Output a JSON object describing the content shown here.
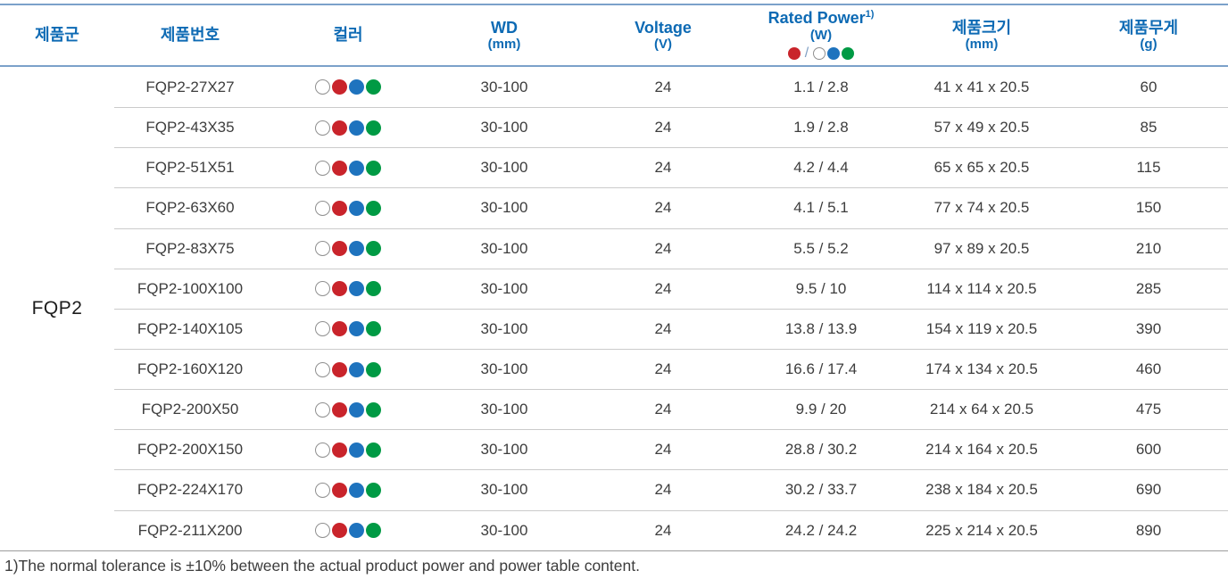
{
  "table": {
    "headers": {
      "family": "제품군",
      "part_no": "제품번호",
      "color": "컬러",
      "wd": "WD",
      "wd_unit": "(mm)",
      "voltage": "Voltage",
      "voltage_unit": "(V)",
      "rated_power": "Rated Power",
      "rated_power_sup": "1)",
      "rated_power_unit": "(W)",
      "rated_power_slash": "/"
    },
    "headers2": {
      "size": "제품크기",
      "size_unit": "(mm)",
      "weight": "제품무게",
      "weight_unit": "(g)"
    },
    "family_value": "FQP2",
    "color_dots_order": [
      "white",
      "red",
      "blue",
      "green"
    ],
    "header_power_dots": {
      "left": "red",
      "right": [
        "white",
        "blue",
        "green"
      ]
    },
    "rows": [
      {
        "part_no": "FQP2-27X27",
        "wd": "30-100",
        "voltage": "24",
        "rated_power": "1.1 / 2.8",
        "size": "41 x 41 x 20.5",
        "weight": "60"
      },
      {
        "part_no": "FQP2-43X35",
        "wd": "30-100",
        "voltage": "24",
        "rated_power": "1.9 / 2.8",
        "size": "57 x 49 x 20.5",
        "weight": "85"
      },
      {
        "part_no": "FQP2-51X51",
        "wd": "30-100",
        "voltage": "24",
        "rated_power": "4.2 / 4.4",
        "size": "65 x 65 x 20.5",
        "weight": "115"
      },
      {
        "part_no": "FQP2-63X60",
        "wd": "30-100",
        "voltage": "24",
        "rated_power": "4.1 / 5.1",
        "size": "77 x 74 x 20.5",
        "weight": "150"
      },
      {
        "part_no": "FQP2-83X75",
        "wd": "30-100",
        "voltage": "24",
        "rated_power": "5.5 / 5.2",
        "size": "97 x 89 x 20.5",
        "weight": "210"
      },
      {
        "part_no": "FQP2-100X100",
        "wd": "30-100",
        "voltage": "24",
        "rated_power": "9.5 / 10",
        "size": "114 x 114 x 20.5",
        "weight": "285"
      },
      {
        "part_no": "FQP2-140X105",
        "wd": "30-100",
        "voltage": "24",
        "rated_power": "13.8 / 13.9",
        "size": "154 x 119 x 20.5",
        "weight": "390"
      },
      {
        "part_no": "FQP2-160X120",
        "wd": "30-100",
        "voltage": "24",
        "rated_power": "16.6 / 17.4",
        "size": "174 x 134 x 20.5",
        "weight": "460"
      },
      {
        "part_no": "FQP2-200X50",
        "wd": "30-100",
        "voltage": "24",
        "rated_power": "9.9 / 20",
        "size": "214 x 64 x 20.5",
        "weight": "475"
      },
      {
        "part_no": "FQP2-200X150",
        "wd": "30-100",
        "voltage": "24",
        "rated_power": "28.8 / 30.2",
        "size": "214 x 164 x 20.5",
        "weight": "600"
      },
      {
        "part_no": "FQP2-224X170",
        "wd": "30-100",
        "voltage": "24",
        "rated_power": "30.2 / 33.7",
        "size": "238 x 184 x 20.5",
        "weight": "690"
      },
      {
        "part_no": "FQP2-211X200",
        "wd": "30-100",
        "voltage": "24",
        "rated_power": "24.2 / 24.2",
        "size": "225 x 214 x 20.5",
        "weight": "890"
      }
    ]
  },
  "footnote": "1)The normal tolerance is ±10% between the actual product power and power table content.",
  "colors": {
    "header_text": "#0d6ab4",
    "header_rule": "#7ba1ca",
    "row_separator": "#cbcbcb",
    "bottom_rule": "#9c9c9c",
    "dot_red": "#c9242b",
    "dot_blue": "#1e73be",
    "dot_green": "#009a44",
    "dot_white_border": "#8f8f8f"
  }
}
